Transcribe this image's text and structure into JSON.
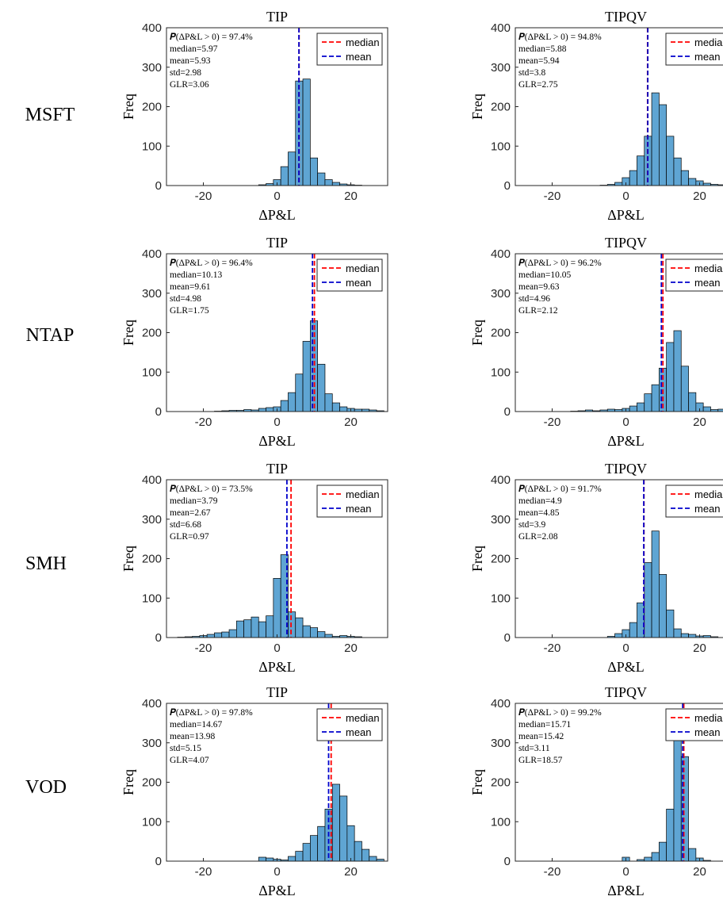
{
  "colors": {
    "bar_fill": "#5fa5d3",
    "bar_edge": "#000000",
    "median_line": "#ff0000",
    "mean_line": "#0000cc",
    "axis": "#262626"
  },
  "figure": {
    "row_labels": [
      "MSFT",
      "NTAP",
      "SMH",
      "VOD"
    ],
    "column_titles": [
      "TIP",
      "TIPQV"
    ]
  },
  "chart_data": [
    {
      "type": "bar",
      "row": 0,
      "col": 0,
      "ticker": "MSFT",
      "title": "TIP",
      "xlabel": "ΔP&L",
      "ylabel": "Freq",
      "xlim": [
        -30,
        30
      ],
      "ylim": [
        0,
        400
      ],
      "xticks": [
        -20,
        0,
        20
      ],
      "yticks": [
        0,
        100,
        200,
        300,
        400
      ],
      "bin_start": -29,
      "bin_width": 2,
      "values": [
        0,
        0,
        0,
        0,
        0,
        0,
        0,
        0,
        0,
        0,
        0,
        0,
        2,
        5,
        15,
        48,
        85,
        265,
        270,
        70,
        32,
        15,
        8,
        4,
        2,
        1,
        0,
        0,
        0,
        0
      ],
      "median": 5.97,
      "mean": 5.93,
      "stats": [
        "𝑷(ΔP&L > 0) = 97.4%",
        "median=5.97",
        "mean=5.93",
        "std=2.98",
        "GLR=3.06"
      ],
      "legend": [
        "median",
        "mean"
      ],
      "legend_position": "top-right"
    },
    {
      "type": "bar",
      "row": 0,
      "col": 1,
      "ticker": "MSFT",
      "title": "TIPQV",
      "xlabel": "ΔP&L",
      "ylabel": "Freq",
      "xlim": [
        -30,
        30
      ],
      "ylim": [
        0,
        400
      ],
      "xticks": [
        -20,
        0,
        20
      ],
      "yticks": [
        0,
        100,
        200,
        300,
        400
      ],
      "bin_start": -29,
      "bin_width": 2,
      "values": [
        0,
        0,
        0,
        0,
        0,
        0,
        0,
        0,
        0,
        0,
        0,
        1,
        3,
        8,
        20,
        38,
        75,
        125,
        235,
        205,
        125,
        70,
        38,
        18,
        12,
        6,
        3,
        2,
        1,
        0
      ],
      "median": 5.88,
      "mean": 5.94,
      "stats": [
        "𝑷(ΔP&L > 0) = 94.8%",
        "median=5.88",
        "mean=5.94",
        "std=3.8",
        "GLR=2.75"
      ],
      "legend": [
        "median",
        "mean"
      ],
      "legend_position": "top-right"
    },
    {
      "type": "bar",
      "row": 1,
      "col": 0,
      "ticker": "NTAP",
      "title": "TIP",
      "xlabel": "ΔP&L",
      "ylabel": "Freq",
      "xlim": [
        -30,
        30
      ],
      "ylim": [
        0,
        400
      ],
      "xticks": [
        -20,
        0,
        20
      ],
      "yticks": [
        0,
        100,
        200,
        300,
        400
      ],
      "bin_start": -29,
      "bin_width": 2,
      "values": [
        0,
        0,
        0,
        0,
        0,
        0,
        1,
        2,
        3,
        3,
        5,
        4,
        8,
        10,
        12,
        28,
        48,
        95,
        178,
        230,
        120,
        45,
        22,
        12,
        8,
        6,
        6,
        4,
        2,
        0
      ],
      "median": 10.13,
      "mean": 9.61,
      "stats": [
        "𝑷(ΔP&L > 0) = 96.4%",
        "median=10.13",
        "mean=9.61",
        "std=4.98",
        "GLR=1.75"
      ],
      "legend": [
        "median",
        "mean"
      ],
      "legend_position": "top-right"
    },
    {
      "type": "bar",
      "row": 1,
      "col": 1,
      "ticker": "NTAP",
      "title": "TIPQV",
      "xlabel": "ΔP&L",
      "ylabel": "Freq",
      "xlim": [
        -30,
        30
      ],
      "ylim": [
        0,
        400
      ],
      "xticks": [
        -20,
        0,
        20
      ],
      "yticks": [
        0,
        100,
        200,
        300,
        400
      ],
      "bin_start": -29,
      "bin_width": 2,
      "values": [
        0,
        0,
        0,
        0,
        0,
        0,
        0,
        1,
        2,
        4,
        2,
        4,
        6,
        5,
        8,
        14,
        22,
        45,
        68,
        110,
        175,
        205,
        115,
        48,
        22,
        12,
        5,
        6,
        4,
        0
      ],
      "median": 10.05,
      "mean": 9.63,
      "stats": [
        "𝑷(ΔP&L > 0) = 96.2%",
        "median=10.05",
        "mean=9.63",
        "std=4.96",
        "GLR=2.12"
      ],
      "legend": [
        "median",
        "mean"
      ],
      "legend_position": "top-right"
    },
    {
      "type": "bar",
      "row": 2,
      "col": 0,
      "ticker": "SMH",
      "title": "TIP",
      "xlabel": "ΔP&L",
      "ylabel": "Freq",
      "xlim": [
        -30,
        30
      ],
      "ylim": [
        0,
        400
      ],
      "xticks": [
        -20,
        0,
        20
      ],
      "yticks": [
        0,
        100,
        200,
        300,
        400
      ],
      "bin_start": -29,
      "bin_width": 2,
      "values": [
        0,
        1,
        2,
        3,
        5,
        8,
        12,
        14,
        20,
        42,
        45,
        52,
        40,
        55,
        150,
        210,
        65,
        50,
        30,
        25,
        15,
        8,
        3,
        5,
        3,
        2,
        0,
        0,
        0,
        0
      ],
      "median": 3.79,
      "mean": 2.67,
      "stats": [
        "𝑷(ΔP&L > 0) = 73.5%",
        "median=3.79",
        "mean=2.67",
        "std=6.68",
        "GLR=0.97"
      ],
      "legend": [
        "median",
        "mean"
      ],
      "legend_position": "top-right"
    },
    {
      "type": "bar",
      "row": 2,
      "col": 1,
      "ticker": "SMH",
      "title": "TIPQV",
      "xlabel": "ΔP&L",
      "ylabel": "Freq",
      "xlim": [
        -30,
        30
      ],
      "ylim": [
        0,
        400
      ],
      "xticks": [
        -20,
        0,
        20
      ],
      "yticks": [
        0,
        100,
        200,
        300,
        400
      ],
      "bin_start": -29,
      "bin_width": 2,
      "values": [
        0,
        0,
        0,
        0,
        0,
        0,
        0,
        0,
        0,
        0,
        0,
        0,
        3,
        10,
        20,
        38,
        88,
        190,
        270,
        160,
        70,
        22,
        10,
        8,
        4,
        5,
        2,
        0,
        0,
        0
      ],
      "median": 4.9,
      "mean": 4.85,
      "stats": [
        "𝑷(ΔP&L > 0) = 91.7%",
        "median=4.9",
        "mean=4.85",
        "std=3.9",
        "GLR=2.08"
      ],
      "legend": [
        "median",
        "mean"
      ],
      "legend_position": "top-right"
    },
    {
      "type": "bar",
      "row": 3,
      "col": 0,
      "ticker": "VOD",
      "title": "TIP",
      "xlabel": "ΔP&L",
      "ylabel": "Freq",
      "xlim": [
        -30,
        30
      ],
      "ylim": [
        0,
        400
      ],
      "xticks": [
        -20,
        0,
        20
      ],
      "yticks": [
        0,
        100,
        200,
        300,
        400
      ],
      "bin_start": -29,
      "bin_width": 2,
      "values": [
        0,
        0,
        0,
        0,
        0,
        0,
        0,
        0,
        0,
        0,
        0,
        0,
        10,
        8,
        5,
        3,
        12,
        25,
        45,
        65,
        88,
        132,
        195,
        165,
        90,
        50,
        30,
        12,
        5,
        0
      ],
      "median": 14.67,
      "mean": 13.98,
      "stats": [
        "𝑷(ΔP&L > 0) = 97.8%",
        "median=14.67",
        "mean=13.98",
        "std=5.15",
        "GLR=4.07"
      ],
      "legend": [
        "median",
        "mean"
      ],
      "legend_position": "top-right"
    },
    {
      "type": "bar",
      "row": 3,
      "col": 1,
      "ticker": "VOD",
      "title": "TIPQV",
      "xlabel": "ΔP&L",
      "ylabel": "Freq",
      "xlim": [
        -30,
        30
      ],
      "ylim": [
        0,
        400
      ],
      "xticks": [
        -20,
        0,
        20
      ],
      "yticks": [
        0,
        100,
        200,
        300,
        400
      ],
      "bin_start": -29,
      "bin_width": 2,
      "values": [
        0,
        0,
        0,
        0,
        0,
        0,
        0,
        0,
        0,
        0,
        0,
        0,
        0,
        0,
        10,
        0,
        4,
        10,
        22,
        48,
        132,
        310,
        265,
        32,
        8,
        2,
        0,
        0,
        0,
        0
      ],
      "median": 15.71,
      "mean": 15.42,
      "stats": [
        "𝑷(ΔP&L > 0) = 99.2%",
        "median=15.71",
        "mean=15.42",
        "std=3.11",
        "GLR=18.57"
      ],
      "legend": [
        "median",
        "mean"
      ],
      "legend_position": "top-right"
    }
  ]
}
